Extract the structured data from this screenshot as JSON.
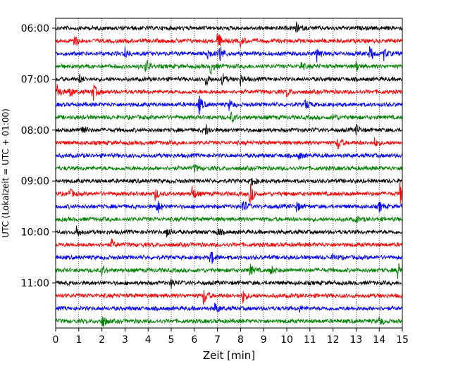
{
  "chart_data": {
    "type": "line",
    "title": "",
    "xlabel": "Zeit  [min]",
    "ylabel": "UTC (Lokalzeit = UTC + 01:00)",
    "xlim": [
      0,
      15
    ],
    "x_ticks": [
      "0",
      "1",
      "2",
      "3",
      "4",
      "5",
      "6",
      "7",
      "8",
      "9",
      "10",
      "11",
      "12",
      "13",
      "14",
      "15"
    ],
    "y_tick_labels": [
      "06:00",
      "07:00",
      "08:00",
      "09:00",
      "10:00",
      "11:00"
    ],
    "grid": "vertical-dotted",
    "legend": "none",
    "trace_colors": [
      "#000000",
      "#ff0000",
      "#0000ff",
      "#008000"
    ],
    "traces": [
      {
        "start": "06:00",
        "events": [
          [
            10.4,
            0.5
          ]
        ]
      },
      {
        "start": "06:15",
        "events": [
          [
            0.8,
            0.8
          ],
          [
            7.0,
            1.0
          ],
          [
            8.0,
            0.5
          ]
        ]
      },
      {
        "start": "06:30",
        "events": [
          [
            3.0,
            0.6
          ],
          [
            6.5,
            1.0
          ],
          [
            7.1,
            1.0
          ],
          [
            11.3,
            0.8
          ],
          [
            13.6,
            0.9
          ],
          [
            14.2,
            0.6
          ]
        ]
      },
      {
        "start": "06:45",
        "events": [
          [
            3.9,
            0.8
          ],
          [
            6.7,
            0.8
          ],
          [
            10.6,
            0.5
          ],
          [
            13.0,
            0.5
          ]
        ]
      },
      {
        "start": "07:00",
        "events": [
          [
            1.0,
            0.5
          ],
          [
            6.5,
            0.6
          ],
          [
            7.2,
            0.6
          ],
          [
            8.0,
            0.5
          ]
        ]
      },
      {
        "start": "07:15",
        "events": [
          [
            0.0,
            1.2
          ],
          [
            0.6,
            0.6
          ],
          [
            1.6,
            1.0
          ],
          [
            10.0,
            0.5
          ]
        ]
      },
      {
        "start": "07:30",
        "events": [
          [
            6.2,
            1.0
          ],
          [
            7.5,
            0.5
          ],
          [
            10.8,
            0.6
          ]
        ]
      },
      {
        "start": "07:45",
        "events": [
          [
            7.6,
            0.5
          ],
          [
            12.0,
            0.4
          ]
        ]
      },
      {
        "start": "08:00",
        "events": [
          [
            1.1,
            0.8
          ],
          [
            6.5,
            0.6
          ],
          [
            13.0,
            0.5
          ]
        ]
      },
      {
        "start": "08:15",
        "events": [
          [
            12.2,
            0.8
          ],
          [
            13.8,
            0.4
          ]
        ]
      },
      {
        "start": "08:30",
        "events": [
          [
            10.5,
            0.4
          ]
        ]
      },
      {
        "start": "08:45",
        "events": [
          [
            6.0,
            0.4
          ]
        ]
      },
      {
        "start": "09:00",
        "events": [
          [
            8.5,
            0.5
          ]
        ]
      },
      {
        "start": "09:15",
        "events": [
          [
            0.6,
            0.5
          ],
          [
            4.3,
            0.6
          ],
          [
            5.9,
            0.8
          ],
          [
            8.4,
            1.2
          ],
          [
            14.9,
            1.1
          ]
        ]
      },
      {
        "start": "09:30",
        "events": [
          [
            4.4,
            0.8
          ],
          [
            8.1,
            0.8
          ],
          [
            10.4,
            0.6
          ],
          [
            14.0,
            0.5
          ]
        ]
      },
      {
        "start": "09:45",
        "events": [
          [
            13.0,
            0.3
          ]
        ]
      },
      {
        "start": "10:00",
        "events": [
          [
            0.9,
            0.6
          ],
          [
            4.8,
            0.6
          ],
          [
            7.0,
            0.4
          ]
        ]
      },
      {
        "start": "10:15",
        "events": [
          [
            2.4,
            0.5
          ]
        ]
      },
      {
        "start": "10:30",
        "events": [
          [
            6.7,
            0.9
          ],
          [
            12.0,
            0.4
          ]
        ]
      },
      {
        "start": "10:45",
        "events": [
          [
            2.0,
            0.5
          ],
          [
            8.4,
            0.6
          ],
          [
            9.3,
            0.5
          ],
          [
            14.8,
            1.2
          ]
        ]
      },
      {
        "start": "11:00",
        "events": [
          [
            5.0,
            0.4
          ]
        ]
      },
      {
        "start": "11:15",
        "events": [
          [
            6.4,
            1.0
          ],
          [
            8.1,
            0.7
          ]
        ]
      },
      {
        "start": "11:30",
        "events": [
          [
            6.9,
            0.6
          ],
          [
            10.5,
            0.4
          ]
        ]
      },
      {
        "start": "11:45",
        "events": [
          [
            2.0,
            0.8
          ],
          [
            14.0,
            0.4
          ]
        ]
      }
    ]
  }
}
